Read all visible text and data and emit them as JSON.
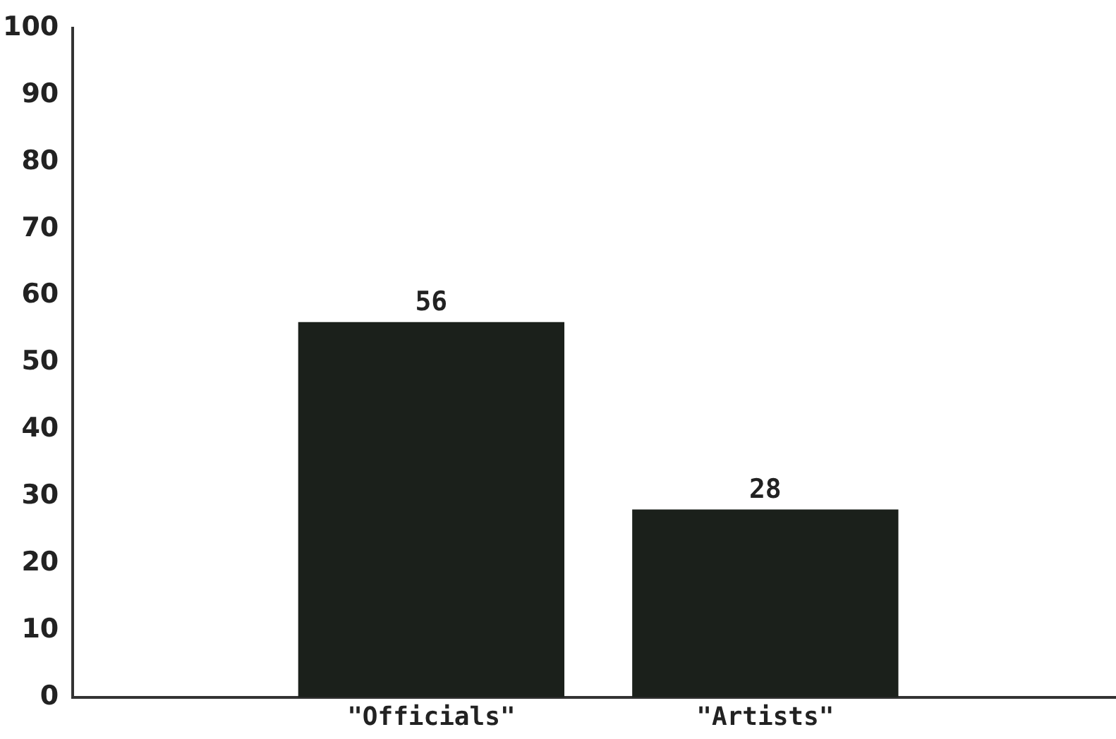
{
  "chart_data": {
    "type": "bar",
    "categories": [
      "\"Officials\"",
      "\"Artists\""
    ],
    "values": [
      56,
      28
    ],
    "color": "#1b201b",
    "ylim": [
      0,
      100
    ],
    "yticks": [
      0,
      10,
      20,
      30,
      40,
      50,
      60,
      70,
      80,
      90,
      100
    ],
    "grid": false,
    "legend": false,
    "data_labels": true
  }
}
